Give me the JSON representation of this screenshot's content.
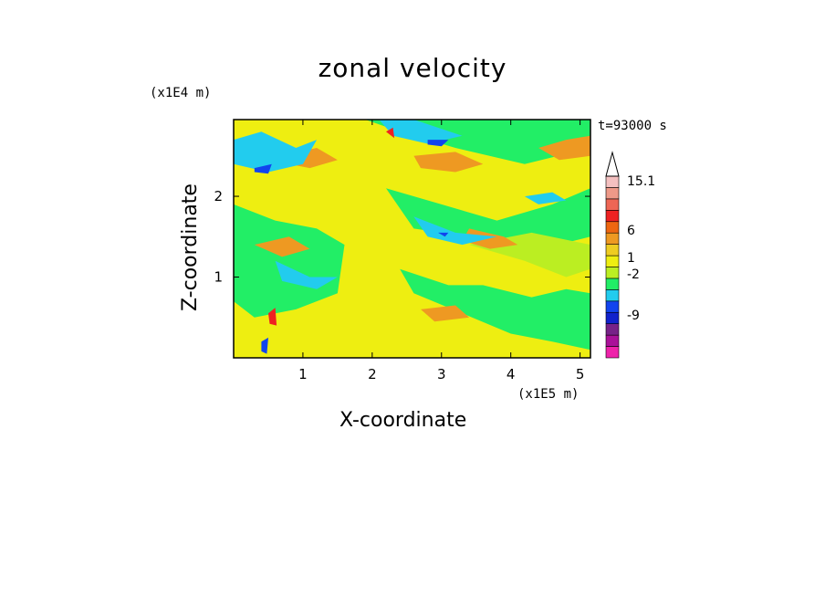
{
  "chart_data": {
    "type": "heatmap",
    "title": "zonal velocity",
    "xlabel": "X-coordinate",
    "ylabel": "Z-coordinate",
    "x_unit": "(x1E5 m)",
    "y_unit": "(x1E4 m)",
    "time_label": "t=93000 s",
    "xlim": [
      0,
      5.15
    ],
    "ylim": [
      0,
      2.95
    ],
    "x_ticks": [
      {
        "value": 1,
        "label": "1"
      },
      {
        "value": 2,
        "label": "2"
      },
      {
        "value": 3,
        "label": "3"
      },
      {
        "value": 4,
        "label": "4"
      },
      {
        "value": 5,
        "label": "5"
      }
    ],
    "y_ticks": [
      {
        "value": 1,
        "label": "1"
      },
      {
        "value": 2,
        "label": "2"
      }
    ],
    "colorbar": {
      "levels": [
        {
          "color": "#ee22aa"
        },
        {
          "color": "#aa1199"
        },
        {
          "color": "#772288"
        },
        {
          "color": "#1122cc"
        },
        {
          "color": "#1144ee"
        },
        {
          "color": "#22ccee"
        },
        {
          "color": "#22ee66"
        },
        {
          "color": "#bbee22"
        },
        {
          "color": "#eeee11"
        },
        {
          "color": "#eecc22"
        },
        {
          "color": "#ee9922"
        },
        {
          "color": "#ee6611"
        },
        {
          "color": "#ee2222"
        },
        {
          "color": "#ee6655"
        },
        {
          "color": "#ee9988"
        },
        {
          "color": "#f4c0c0"
        }
      ],
      "labels": [
        {
          "text": "15.1",
          "at": 15.1
        },
        {
          "text": "6",
          "at": 6
        },
        {
          "text": "1",
          "at": 1
        },
        {
          "text": "-2",
          "at": -2
        },
        {
          "text": "-9",
          "at": -9
        }
      ],
      "extend_max": true
    },
    "field": {
      "background": "#eeee11",
      "regions": [
        {
          "color": "#22ee66",
          "points": [
            [
              0,
              2.95
            ],
            [
              1.9,
              2.95
            ],
            [
              2.4,
              2.8
            ],
            [
              3.2,
              2.6
            ],
            [
              4.2,
              2.4
            ],
            [
              5.15,
              2.6
            ],
            [
              5.15,
              2.95
            ]
          ]
        },
        {
          "color": "#22ee66",
          "points": [
            [
              2.2,
              2.1
            ],
            [
              3.0,
              1.9
            ],
            [
              3.8,
              1.7
            ],
            [
              4.6,
              1.9
            ],
            [
              5.15,
              2.1
            ],
            [
              5.15,
              1.5
            ],
            [
              4.2,
              1.3
            ],
            [
              3.4,
              1.5
            ],
            [
              2.6,
              1.6
            ]
          ]
        },
        {
          "color": "#22ee66",
          "points": [
            [
              2.4,
              1.1
            ],
            [
              3.1,
              0.9
            ],
            [
              3.6,
              0.9
            ],
            [
              4.3,
              0.75
            ],
            [
              4.8,
              0.85
            ],
            [
              5.15,
              0.8
            ],
            [
              5.15,
              0.1
            ],
            [
              4.6,
              0.2
            ],
            [
              4.0,
              0.3
            ],
            [
              3.3,
              0.55
            ],
            [
              2.6,
              0.8
            ]
          ]
        },
        {
          "color": "#22ee66",
          "points": [
            [
              0,
              1.9
            ],
            [
              0.6,
              1.7
            ],
            [
              1.2,
              1.6
            ],
            [
              1.6,
              1.4
            ],
            [
              1.5,
              0.8
            ],
            [
              0.9,
              0.6
            ],
            [
              0.3,
              0.5
            ],
            [
              0,
              0.7
            ]
          ]
        },
        {
          "color": "#bbee22",
          "points": [
            [
              3.4,
              1.4
            ],
            [
              4.2,
              1.2
            ],
            [
              4.8,
              1.0
            ],
            [
              5.15,
              1.1
            ],
            [
              5.15,
              1.4
            ],
            [
              4.3,
              1.55
            ]
          ]
        },
        {
          "color": "#ee9922",
          "points": [
            [
              2.6,
              2.5
            ],
            [
              3.2,
              2.55
            ],
            [
              3.6,
              2.4
            ],
            [
              3.2,
              2.3
            ],
            [
              2.7,
              2.35
            ]
          ]
        },
        {
          "color": "#ee9922",
          "points": [
            [
              3.4,
              1.6
            ],
            [
              3.9,
              1.5
            ],
            [
              4.1,
              1.4
            ],
            [
              3.7,
              1.35
            ],
            [
              3.3,
              1.45
            ]
          ]
        },
        {
          "color": "#ee9922",
          "points": [
            [
              4.4,
              2.6
            ],
            [
              4.8,
              2.7
            ],
            [
              5.15,
              2.75
            ],
            [
              5.15,
              2.5
            ],
            [
              4.7,
              2.45
            ]
          ]
        },
        {
          "color": "#ee9922",
          "points": [
            [
              0.7,
              2.5
            ],
            [
              1.2,
              2.6
            ],
            [
              1.5,
              2.45
            ],
            [
              1.1,
              2.35
            ],
            [
              0.8,
              2.4
            ]
          ]
        },
        {
          "color": "#ee9922",
          "points": [
            [
              0.3,
              1.4
            ],
            [
              0.8,
              1.5
            ],
            [
              1.1,
              1.35
            ],
            [
              0.7,
              1.25
            ]
          ]
        },
        {
          "color": "#ee9922",
          "points": [
            [
              2.7,
              0.6
            ],
            [
              3.2,
              0.65
            ],
            [
              3.4,
              0.5
            ],
            [
              2.9,
              0.45
            ]
          ]
        },
        {
          "color": "#22ccee",
          "points": [
            [
              0,
              2.7
            ],
            [
              0.4,
              2.8
            ],
            [
              0.9,
              2.6
            ],
            [
              1.2,
              2.7
            ],
            [
              1.0,
              2.4
            ],
            [
              0.5,
              2.3
            ],
            [
              0,
              2.4
            ]
          ]
        },
        {
          "color": "#22ccee",
          "points": [
            [
              2.1,
              2.95
            ],
            [
              2.6,
              2.95
            ],
            [
              3.3,
              2.75
            ],
            [
              2.8,
              2.65
            ],
            [
              2.3,
              2.75
            ]
          ]
        },
        {
          "color": "#22ccee",
          "points": [
            [
              2.6,
              1.75
            ],
            [
              3.2,
              1.55
            ],
            [
              3.8,
              1.5
            ],
            [
              3.3,
              1.4
            ],
            [
              2.8,
              1.5
            ]
          ]
        },
        {
          "color": "#22ccee",
          "points": [
            [
              0.6,
              1.2
            ],
            [
              1.1,
              1.0
            ],
            [
              1.5,
              1.0
            ],
            [
              1.2,
              0.85
            ],
            [
              0.7,
              0.95
            ]
          ]
        },
        {
          "color": "#22ccee",
          "points": [
            [
              4.2,
              2.0
            ],
            [
              4.6,
              2.05
            ],
            [
              4.8,
              1.95
            ],
            [
              4.4,
              1.9
            ]
          ]
        },
        {
          "color": "#1144ee",
          "points": [
            [
              2.8,
              2.7
            ],
            [
              3.1,
              2.7
            ],
            [
              3.0,
              2.62
            ],
            [
              2.8,
              2.64
            ]
          ]
        },
        {
          "color": "#1144ee",
          "points": [
            [
              0.3,
              2.35
            ],
            [
              0.55,
              2.4
            ],
            [
              0.5,
              2.28
            ],
            [
              0.3,
              2.3
            ]
          ]
        },
        {
          "color": "#1144ee",
          "points": [
            [
              2.95,
              1.55
            ],
            [
              3.1,
              1.55
            ],
            [
              3.05,
              1.5
            ]
          ]
        },
        {
          "color": "#1144ee",
          "points": [
            [
              0.4,
              0.2
            ],
            [
              0.5,
              0.25
            ],
            [
              0.48,
              0.05
            ],
            [
              0.4,
              0.08
            ]
          ]
        },
        {
          "color": "#ee2222",
          "points": [
            [
              0.5,
              0.55
            ],
            [
              0.6,
              0.62
            ],
            [
              0.62,
              0.4
            ],
            [
              0.52,
              0.42
            ]
          ]
        },
        {
          "color": "#ee2222",
          "points": [
            [
              2.2,
              2.8
            ],
            [
              2.3,
              2.85
            ],
            [
              2.32,
              2.72
            ]
          ]
        }
      ]
    }
  }
}
